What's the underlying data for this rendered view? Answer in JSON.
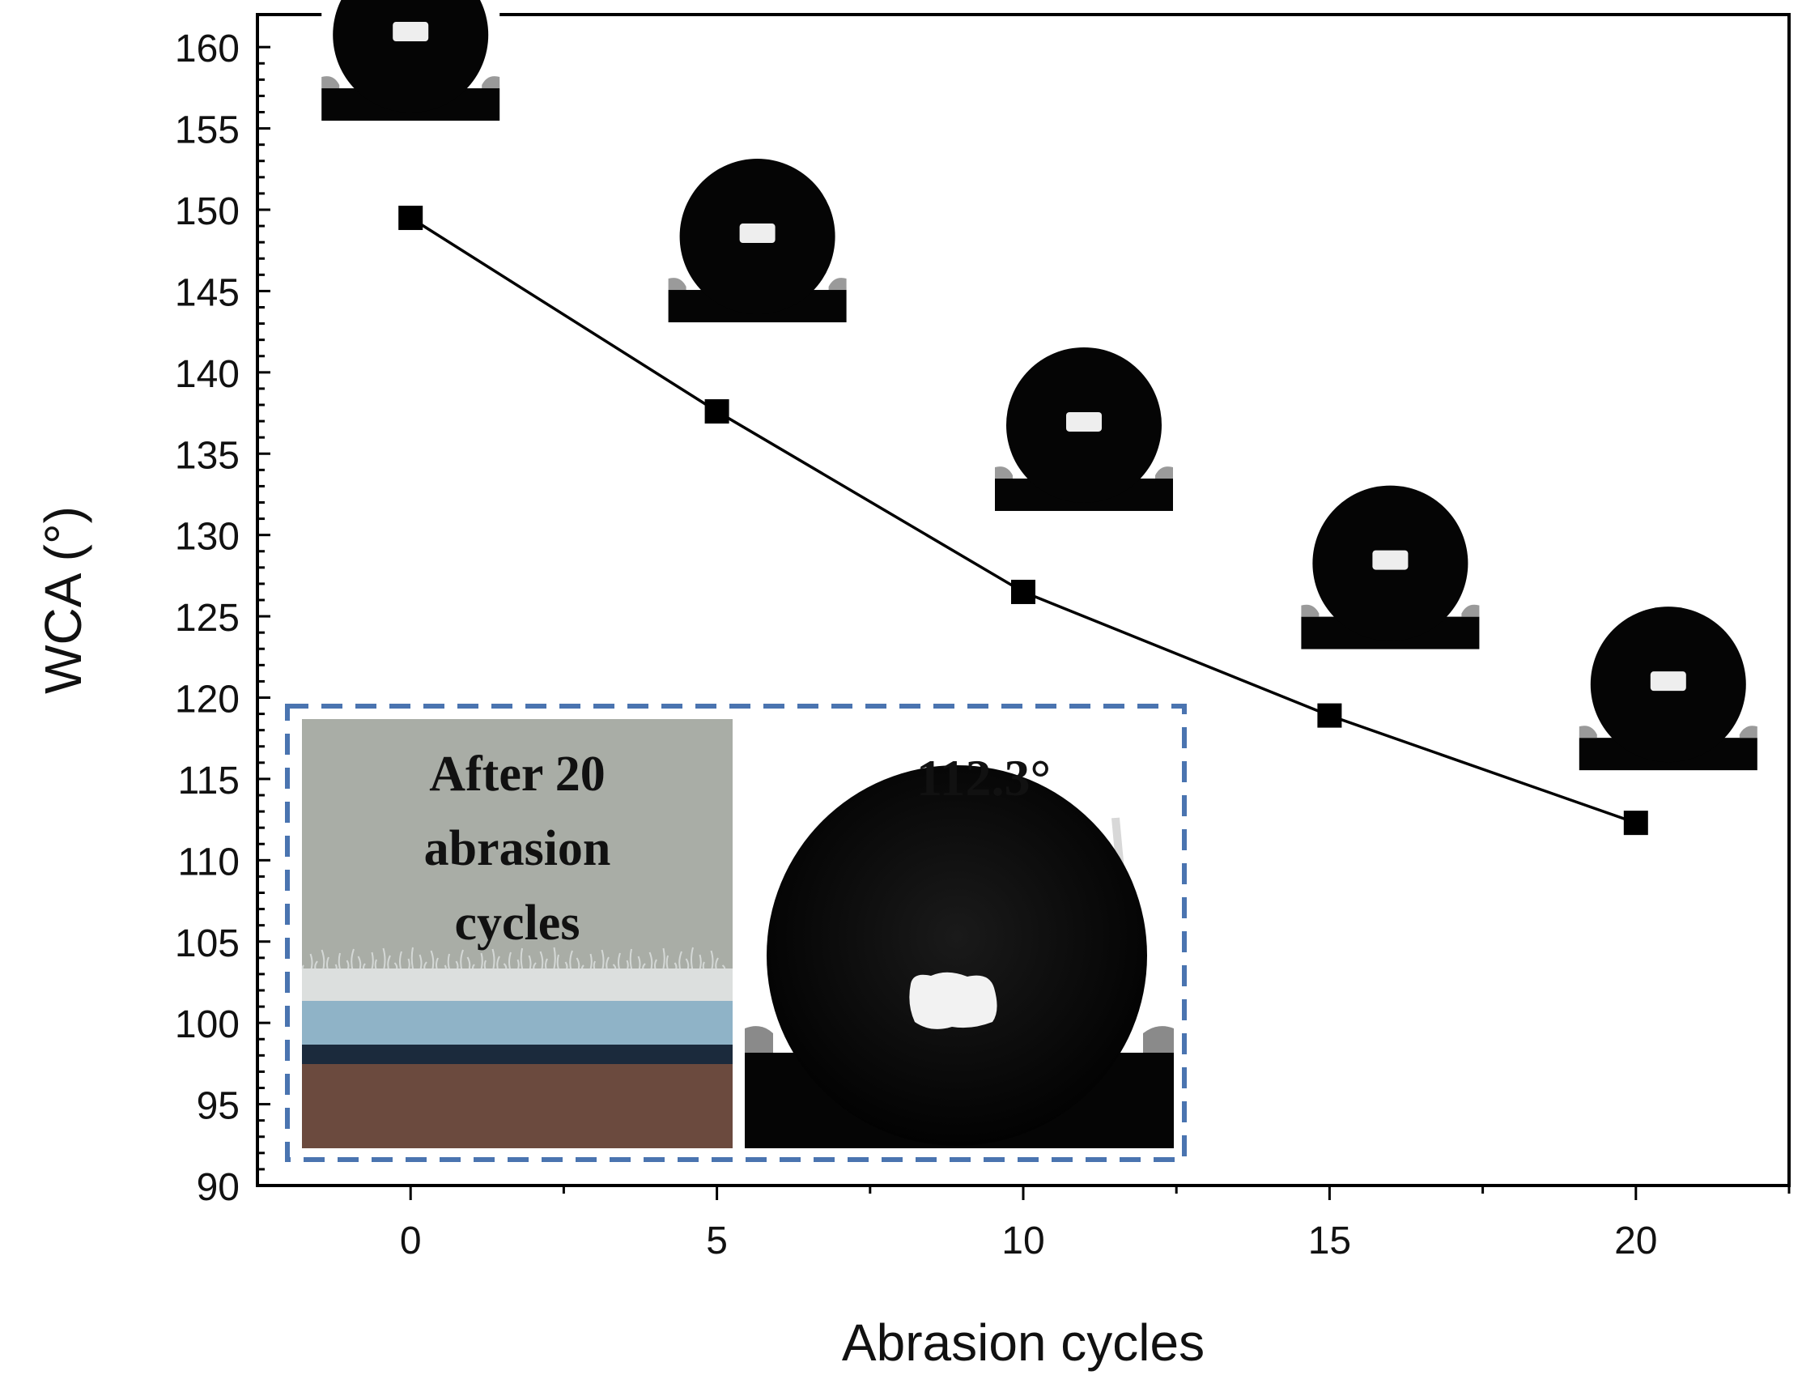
{
  "chart_data": {
    "type": "line",
    "title": "",
    "xlabel": "Abrasion cycles",
    "ylabel": "WCA (°)",
    "xlim": [
      -2.5,
      22.5
    ],
    "ylim": [
      90,
      162
    ],
    "xticks": [
      0,
      5,
      10,
      15,
      20
    ],
    "yticks": [
      90,
      95,
      100,
      105,
      110,
      115,
      120,
      125,
      130,
      135,
      140,
      145,
      150,
      155,
      160
    ],
    "grid": false,
    "marker": "square",
    "color": "#000000",
    "series": [
      {
        "x": [
          0,
          5,
          10,
          15,
          20
        ],
        "y": [
          149.5,
          137.6,
          126.5,
          118.9,
          112.3
        ]
      }
    ],
    "inset": {
      "border_color": "#4a74b0",
      "photo_label_lines": [
        "After 20",
        "abrasion",
        "cycles"
      ],
      "angle_label": "112.3°",
      "photo_colors": {
        "background": "#a9ada6",
        "fabric_top": "#dcdfde",
        "fabric_band": "#8fb3c7",
        "dark_band": "#1b2a3c",
        "table": "#6b4a3e"
      }
    }
  }
}
